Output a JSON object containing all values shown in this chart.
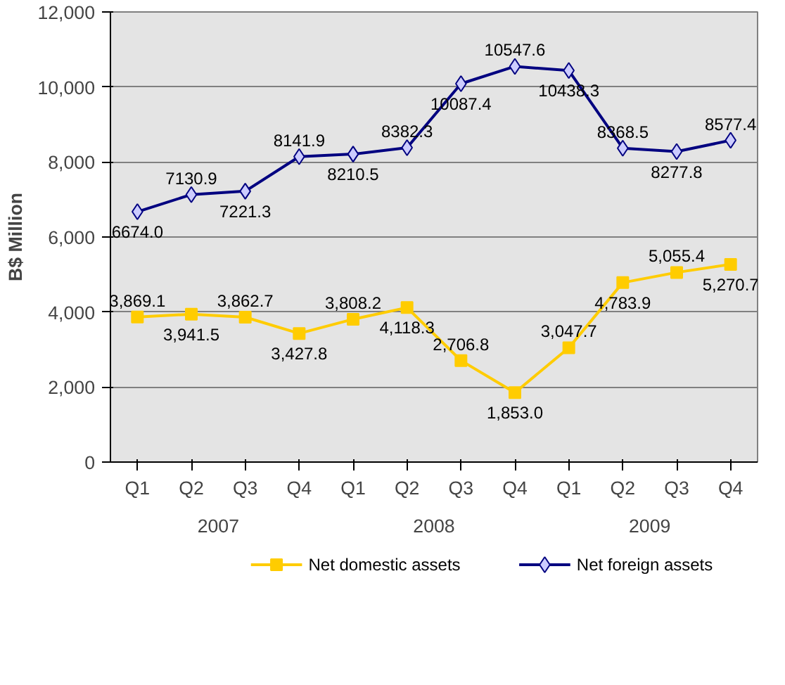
{
  "chart_data": {
    "type": "line",
    "ylabel": "B$ Million",
    "categories": [
      "Q1",
      "Q2",
      "Q3",
      "Q4",
      "Q1",
      "Q2",
      "Q3",
      "Q4",
      "Q1",
      "Q2",
      "Q3",
      "Q4"
    ],
    "annotations": [
      "2007",
      "2008",
      "2009"
    ],
    "ylim": [
      0,
      12000
    ],
    "yticks": [
      {
        "value": 0,
        "label": "0"
      },
      {
        "value": 2000,
        "label": "2,000"
      },
      {
        "value": 4000,
        "label": "4,000"
      },
      {
        "value": 6000,
        "label": "6,000"
      },
      {
        "value": 8000,
        "label": "8,000"
      },
      {
        "value": 10000,
        "label": "10,000"
      },
      {
        "value": 12000,
        "label": "12,000"
      }
    ],
    "grid": "y",
    "legend": "bottom",
    "series": [
      {
        "name": "Net domestic assets",
        "color": "#ffcc00",
        "marker": "square",
        "values": [
          3869.1,
          3941.5,
          3862.7,
          3427.8,
          3808.2,
          4118.3,
          2706.8,
          1853.0,
          3047.7,
          4783.9,
          5055.4,
          5270.7
        ],
        "value_labels": [
          "3,869.1",
          "3,941.5",
          "3,862.7",
          "3,427.8",
          "3,808.2",
          "4,118.3",
          "2,706.8",
          "1,853.0",
          "3,047.7",
          "4,783.9",
          "5,055.4",
          "5,270.7"
        ]
      },
      {
        "name": "Net foreign assets",
        "color": "#000080",
        "marker": "diamond",
        "values": [
          6674.0,
          7130.9,
          7221.3,
          8141.9,
          8210.5,
          8382.3,
          10087.4,
          10547.6,
          10438.3,
          8368.5,
          8277.8,
          8577.4
        ],
        "value_labels": [
          "6674.0",
          "7130.9",
          "7221.3",
          "8141.9",
          "8210.5",
          "8382.3",
          "10087.4",
          "10547.6",
          "10438.3",
          "8368.5",
          "8277.8",
          "8577.4"
        ]
      }
    ]
  }
}
